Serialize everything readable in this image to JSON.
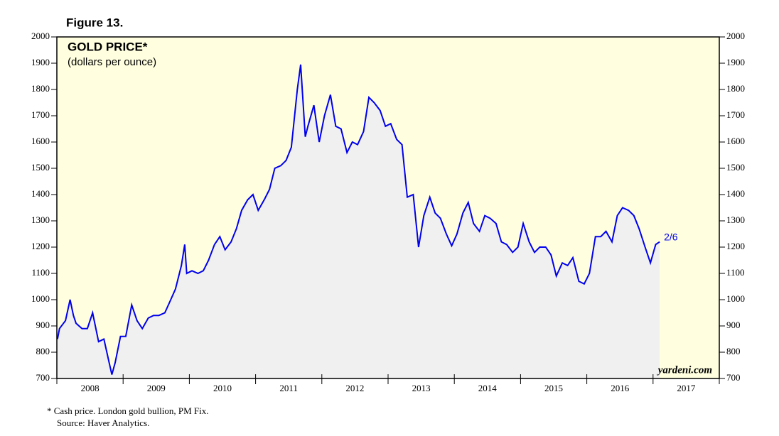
{
  "chart_data": {
    "type": "line",
    "figure_label": "Figure 13.",
    "title": "GOLD PRICE*",
    "subtitle": "(dollars per ounce)",
    "x": [
      2008.01,
      2008.04,
      2008.13,
      2008.2,
      2008.25,
      2008.29,
      2008.38,
      2008.46,
      2008.54,
      2008.63,
      2008.71,
      2008.79,
      2008.83,
      2008.88,
      2008.96,
      2009.04,
      2009.13,
      2009.21,
      2009.29,
      2009.38,
      2009.46,
      2009.54,
      2009.63,
      2009.71,
      2009.79,
      2009.88,
      2009.93,
      2009.96,
      2010.04,
      2010.13,
      2010.21,
      2010.29,
      2010.38,
      2010.46,
      2010.54,
      2010.63,
      2010.71,
      2010.79,
      2010.88,
      2010.96,
      2011.04,
      2011.13,
      2011.21,
      2011.29,
      2011.38,
      2011.46,
      2011.54,
      2011.63,
      2011.68,
      2011.75,
      2011.79,
      2011.88,
      2011.96,
      2012.04,
      2012.13,
      2012.21,
      2012.29,
      2012.38,
      2012.46,
      2012.54,
      2012.63,
      2012.71,
      2012.79,
      2012.88,
      2012.96,
      2013.04,
      2013.13,
      2013.21,
      2013.29,
      2013.38,
      2013.46,
      2013.54,
      2013.63,
      2013.71,
      2013.79,
      2013.88,
      2013.96,
      2014.04,
      2014.13,
      2014.21,
      2014.29,
      2014.38,
      2014.46,
      2014.54,
      2014.63,
      2014.71,
      2014.79,
      2014.88,
      2014.96,
      2015.04,
      2015.13,
      2015.21,
      2015.29,
      2015.38,
      2015.46,
      2015.54,
      2015.63,
      2015.71,
      2015.79,
      2015.88,
      2015.96,
      2016.04,
      2016.13,
      2016.21,
      2016.29,
      2016.38,
      2016.46,
      2016.54,
      2016.63,
      2016.71,
      2016.79,
      2016.88,
      2016.96,
      2017.04,
      2017.1
    ],
    "values": [
      850,
      890,
      920,
      1000,
      940,
      910,
      890,
      890,
      950,
      840,
      850,
      760,
      715,
      760,
      860,
      860,
      980,
      920,
      890,
      930,
      940,
      940,
      950,
      995,
      1040,
      1130,
      1210,
      1100,
      1110,
      1100,
      1110,
      1150,
      1210,
      1240,
      1190,
      1220,
      1270,
      1340,
      1380,
      1400,
      1340,
      1380,
      1420,
      1500,
      1510,
      1530,
      1580,
      1800,
      1895,
      1620,
      1660,
      1740,
      1600,
      1700,
      1780,
      1660,
      1650,
      1560,
      1600,
      1590,
      1640,
      1770,
      1750,
      1720,
      1660,
      1670,
      1610,
      1590,
      1390,
      1400,
      1200,
      1320,
      1390,
      1330,
      1310,
      1250,
      1205,
      1250,
      1330,
      1370,
      1290,
      1260,
      1320,
      1310,
      1290,
      1220,
      1210,
      1180,
      1200,
      1290,
      1220,
      1180,
      1200,
      1200,
      1170,
      1090,
      1140,
      1130,
      1160,
      1070,
      1060,
      1100,
      1240,
      1240,
      1260,
      1220,
      1320,
      1350,
      1340,
      1320,
      1270,
      1200,
      1140,
      1210,
      1220
    ],
    "color": "#0000ee",
    "area_color": "#f0f0f0",
    "background": "#ffffe0",
    "annotation": "2/6",
    "xlim": [
      2008,
      2018
    ],
    "xticks": [
      {
        "value": 2008.5,
        "label": "2008"
      },
      {
        "value": 2009.5,
        "label": "2009"
      },
      {
        "value": 2010.5,
        "label": "2010"
      },
      {
        "value": 2011.5,
        "label": "2011"
      },
      {
        "value": 2012.5,
        "label": "2012"
      },
      {
        "value": 2013.5,
        "label": "2013"
      },
      {
        "value": 2014.5,
        "label": "2014"
      },
      {
        "value": 2015.5,
        "label": "2015"
      },
      {
        "value": 2016.5,
        "label": "2016"
      },
      {
        "value": 2017.5,
        "label": "2017"
      }
    ],
    "x_boundaries": [
      2008,
      2009,
      2010,
      2011,
      2012,
      2013,
      2014,
      2015,
      2016,
      2017,
      2018
    ],
    "ylim": [
      700,
      2000
    ],
    "yticks": [
      700,
      800,
      900,
      1000,
      1100,
      1200,
      1300,
      1400,
      1500,
      1600,
      1700,
      1800,
      1900,
      2000
    ],
    "watermark": "yardeni.com",
    "footnote": "*   Cash price. London gold bullion, PM Fix.",
    "source": "Source: Haver Analytics."
  }
}
